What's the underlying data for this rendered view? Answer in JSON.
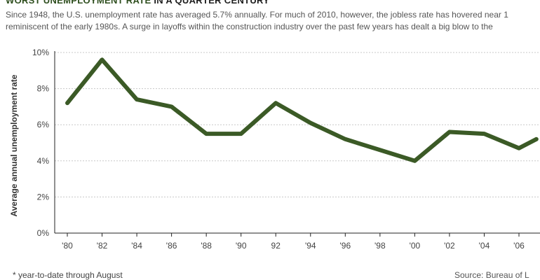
{
  "header": {
    "title_part1": "WORST UNEMPLOYMENT RATE",
    "title_part2": " IN A QUARTER CENTURY",
    "intro_line1": "Since 1948, the U.S. unemployment rate has averaged 5.7% annually. For much of 2010, however, the jobless rate has hovered near 1",
    "intro_line2": "reminiscent of the early 1980s. A surge in layoffs within the construction industry over the past few years has dealt a big blow to the"
  },
  "footer": {
    "footnote": "* year-to-date through August",
    "source": "Source: Bureau of L"
  },
  "chart_data": {
    "type": "line",
    "title": "",
    "ylabel": "Average annual unemployment rate",
    "xlabel": "",
    "x": [
      1980,
      1982,
      1984,
      1986,
      1988,
      1990,
      1992,
      1994,
      1996,
      1998,
      2000,
      2002,
      2004,
      2006,
      2007
    ],
    "series": [
      {
        "values": [
          7.2,
          9.6,
          7.4,
          7.0,
          5.5,
          5.5,
          7.2,
          6.1,
          5.2,
          4.6,
          4.0,
          5.6,
          5.5,
          4.7,
          5.2
        ]
      }
    ],
    "ylim": [
      0,
      10
    ],
    "yticks": [
      {
        "value": 0,
        "label": "0%"
      },
      {
        "value": 2,
        "label": "2%"
      },
      {
        "value": 4,
        "label": "4%"
      },
      {
        "value": 6,
        "label": "6%"
      },
      {
        "value": 8,
        "label": "8%"
      },
      {
        "value": 10,
        "label": "10%"
      }
    ],
    "xticks": [
      {
        "value": 1980,
        "label": "'80"
      },
      {
        "value": 1982,
        "label": "'82"
      },
      {
        "value": 1984,
        "label": "'84"
      },
      {
        "value": 1986,
        "label": "'86"
      },
      {
        "value": 1988,
        "label": "'88"
      },
      {
        "value": 1990,
        "label": "'90"
      },
      {
        "value": 1992,
        "label": "92"
      },
      {
        "value": 1994,
        "label": "'94"
      },
      {
        "value": 1996,
        "label": "'96"
      },
      {
        "value": 1998,
        "label": "'98"
      },
      {
        "value": 2000,
        "label": "'00"
      },
      {
        "value": 2002,
        "label": "'02"
      },
      {
        "value": 2004,
        "label": "'04"
      },
      {
        "value": 2006,
        "label": "'06"
      }
    ],
    "grid": true,
    "colors": {
      "line": "#3b5a26",
      "grid": "#c8c8c8",
      "axis": "#222222"
    }
  }
}
